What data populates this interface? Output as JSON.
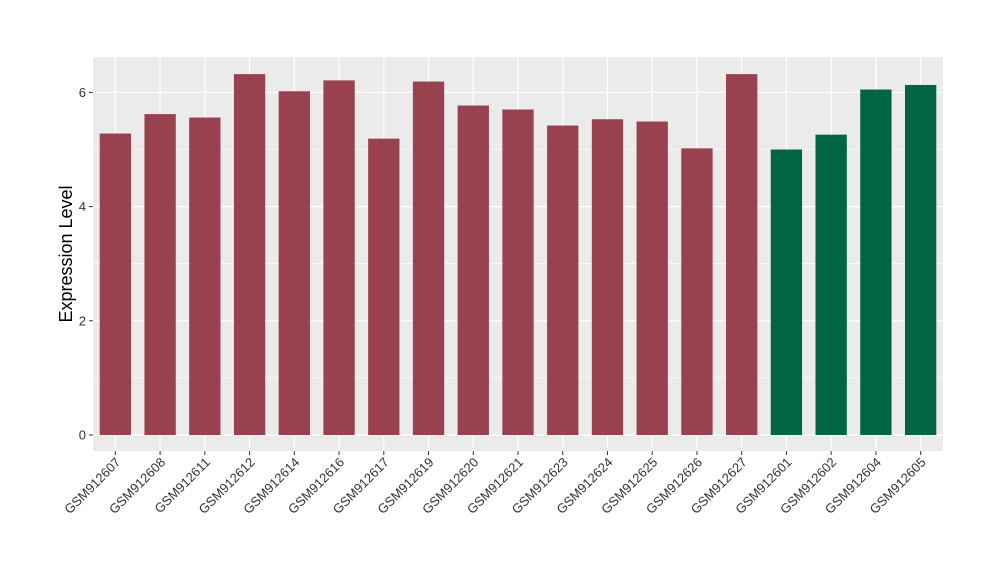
{
  "chart_data": {
    "type": "bar",
    "title": "",
    "xlabel": "",
    "ylabel": "Expression Level",
    "ylim": [
      -0.28,
      6.62
    ],
    "yticks": [
      0,
      2,
      4,
      6
    ],
    "grid": true,
    "legend": "none",
    "categories": [
      "GSM912607",
      "GSM912608",
      "GSM912611",
      "GSM912612",
      "GSM912614",
      "GSM912616",
      "GSM912617",
      "GSM912619",
      "GSM912620",
      "GSM912621",
      "GSM912623",
      "GSM912624",
      "GSM912625",
      "GSM912626",
      "GSM912627",
      "GSM912601",
      "GSM912602",
      "GSM912604",
      "GSM912605"
    ],
    "values": [
      5.28,
      5.62,
      5.56,
      6.32,
      6.02,
      6.21,
      5.19,
      6.19,
      5.77,
      5.7,
      5.42,
      5.53,
      5.49,
      5.02,
      6.32,
      5.0,
      5.26,
      6.05,
      6.13
    ],
    "groups": [
      0,
      0,
      0,
      0,
      0,
      0,
      0,
      0,
      0,
      0,
      0,
      0,
      0,
      0,
      0,
      1,
      1,
      1,
      1
    ],
    "group_colors": [
      "#9a4150",
      "#006540"
    ],
    "panel_background": "#ebebeb",
    "grid_color": "#ffffff"
  }
}
